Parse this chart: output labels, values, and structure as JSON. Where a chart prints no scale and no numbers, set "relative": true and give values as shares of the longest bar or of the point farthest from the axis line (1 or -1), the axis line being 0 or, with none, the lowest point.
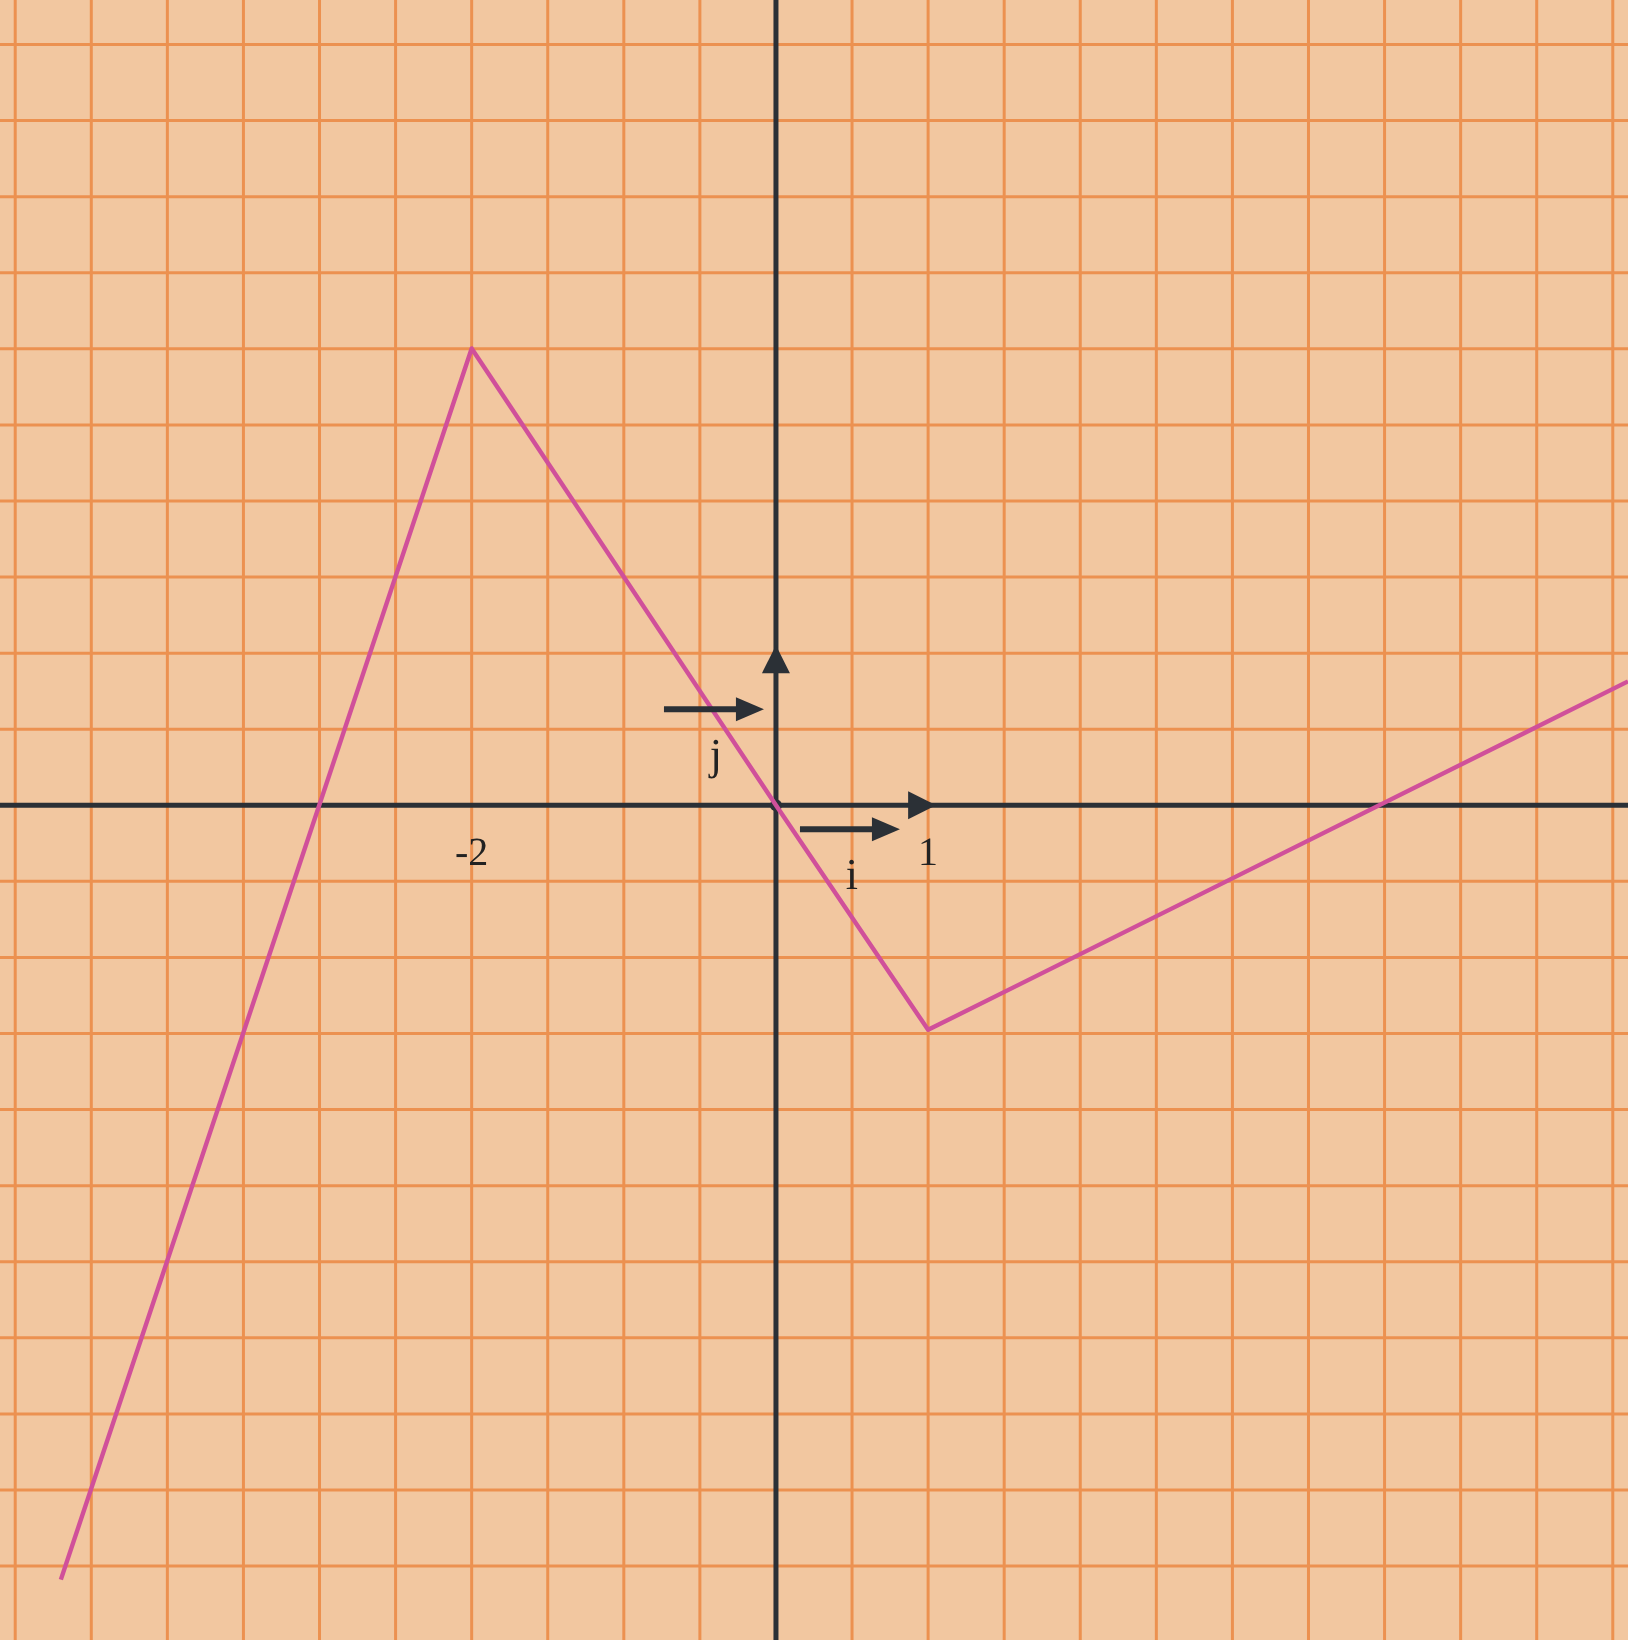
{
  "chart_data": {
    "type": "line",
    "relative": true,
    "x": [
      -4.7,
      -2,
      0,
      1,
      5.6
    ],
    "series": [
      {
        "color": "#d0509a",
        "values": [
          -1,
          0.59,
          0,
          -0.29,
          0.16
        ]
      }
    ],
    "xlim": [
      -5.1,
      5.6
    ],
    "xticks": [
      {
        "value": -5,
        "label": null
      },
      {
        "value": -4.5,
        "label": null
      },
      {
        "value": -4,
        "label": null
      },
      {
        "value": -3.5,
        "label": null
      },
      {
        "value": -3,
        "label": null
      },
      {
        "value": -2.5,
        "label": null
      },
      {
        "value": -2,
        "label": "-2"
      },
      {
        "value": -1.5,
        "label": null
      },
      {
        "value": -1,
        "label": null
      },
      {
        "value": -0.5,
        "label": null
      },
      {
        "value": 0.5,
        "label": null
      },
      {
        "value": 1,
        "label": "1"
      },
      {
        "value": 1.5,
        "label": null
      },
      {
        "value": 2,
        "label": null
      },
      {
        "value": 2.5,
        "label": null
      },
      {
        "value": 3,
        "label": null
      },
      {
        "value": 3.5,
        "label": null
      },
      {
        "value": 4,
        "label": null
      },
      {
        "value": 4.5,
        "label": null
      },
      {
        "value": 5,
        "label": null
      },
      {
        "value": 5.5,
        "label": null
      }
    ],
    "tick_labels": "x",
    "grid": true,
    "marker": "none",
    "line_style": "solid",
    "annotations": [
      "j",
      "i"
    ]
  }
}
